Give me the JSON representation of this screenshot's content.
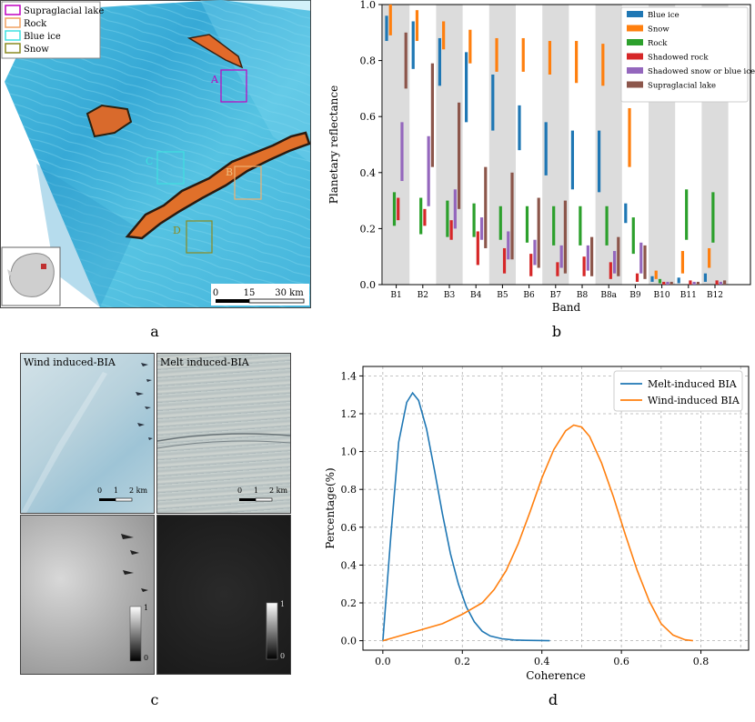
{
  "panels": {
    "a": "a",
    "b": "b",
    "c": "c",
    "d": "d"
  },
  "map_a": {
    "legend": [
      {
        "label": "Supraglacial lake",
        "color": "#c000c0"
      },
      {
        "label": "Rock",
        "color": "#f0a060"
      },
      {
        "label": "Blue ice",
        "color": "#40e0e0"
      },
      {
        "label": "Snow",
        "color": "#8a8a20"
      }
    ],
    "regions": [
      "A",
      "B",
      "C",
      "D"
    ],
    "scale": {
      "ticks": [
        "0",
        "15",
        "30 km"
      ]
    }
  },
  "images_c": {
    "titles": [
      "Wind induced-BIA",
      "Melt induced-BIA"
    ],
    "scale_ticks": [
      "0",
      "1",
      "2 km"
    ],
    "colorbar_ticks": [
      "1",
      "0"
    ]
  },
  "chart_data": [
    {
      "type": "bar",
      "ylabel": "Planetary reflectance",
      "xlabel": "Band",
      "ylim": [
        0,
        1.0
      ],
      "yticks": [
        "0.0",
        "0.2",
        "0.4",
        "0.6",
        "0.8",
        "1.0"
      ],
      "categories": [
        "B1",
        "B2",
        "B3",
        "B4",
        "B5",
        "B6",
        "B7",
        "B8",
        "B8a",
        "B9",
        "B10",
        "B11",
        "B12"
      ],
      "legend_position": "top-right",
      "series": [
        {
          "name": "Blue ice",
          "color": "#1f77b4",
          "ranges": [
            [
              0.87,
              0.96
            ],
            [
              0.77,
              0.94
            ],
            [
              0.71,
              0.88
            ],
            [
              0.58,
              0.83
            ],
            [
              0.55,
              0.75
            ],
            [
              0.48,
              0.64
            ],
            [
              0.39,
              0.58
            ],
            [
              0.34,
              0.55
            ],
            [
              0.33,
              0.55
            ],
            [
              0.22,
              0.29
            ],
            [
              0.01,
              0.03
            ],
            [
              0.005,
              0.025
            ],
            [
              0.01,
              0.04
            ]
          ]
        },
        {
          "name": "Snow",
          "color": "#ff7f0e",
          "ranges": [
            [
              0.89,
              1.0
            ],
            [
              0.87,
              0.98
            ],
            [
              0.84,
              0.94
            ],
            [
              0.79,
              0.91
            ],
            [
              0.76,
              0.88
            ],
            [
              0.76,
              0.88
            ],
            [
              0.75,
              0.87
            ],
            [
              0.72,
              0.87
            ],
            [
              0.71,
              0.86
            ],
            [
              0.42,
              0.63
            ],
            [
              0.02,
              0.05
            ],
            [
              0.04,
              0.12
            ],
            [
              0.06,
              0.13
            ]
          ]
        },
        {
          "name": "Rock",
          "color": "#2ca02c",
          "ranges": [
            [
              0.21,
              0.33
            ],
            [
              0.18,
              0.31
            ],
            [
              0.17,
              0.3
            ],
            [
              0.17,
              0.29
            ],
            [
              0.16,
              0.28
            ],
            [
              0.15,
              0.28
            ],
            [
              0.14,
              0.28
            ],
            [
              0.14,
              0.28
            ],
            [
              0.14,
              0.28
            ],
            [
              0.11,
              0.24
            ],
            [
              0.005,
              0.02
            ],
            [
              0.16,
              0.34
            ],
            [
              0.15,
              0.33
            ]
          ]
        },
        {
          "name": "Shadowed rock",
          "color": "#d62728",
          "ranges": [
            [
              0.23,
              0.31
            ],
            [
              0.21,
              0.27
            ],
            [
              0.16,
              0.23
            ],
            [
              0.07,
              0.19
            ],
            [
              0.04,
              0.13
            ],
            [
              0.03,
              0.11
            ],
            [
              0.03,
              0.08
            ],
            [
              0.03,
              0.1
            ],
            [
              0.02,
              0.08
            ],
            [
              0.01,
              0.04
            ],
            [
              0.0,
              0.01
            ],
            [
              0.0,
              0.015
            ],
            [
              0.0,
              0.015
            ]
          ]
        },
        {
          "name": "Shadowed snow or blue ice",
          "color": "#9467bd",
          "ranges": [
            [
              0.37,
              0.58
            ],
            [
              0.28,
              0.53
            ],
            [
              0.2,
              0.34
            ],
            [
              0.16,
              0.24
            ],
            [
              0.09,
              0.19
            ],
            [
              0.07,
              0.16
            ],
            [
              0.06,
              0.14
            ],
            [
              0.05,
              0.14
            ],
            [
              0.04,
              0.12
            ],
            [
              0.04,
              0.15
            ],
            [
              0.0,
              0.01
            ],
            [
              0.0,
              0.01
            ],
            [
              0.0,
              0.01
            ]
          ]
        },
        {
          "name": "Supraglacial lake",
          "color": "#8c564b",
          "ranges": [
            [
              0.7,
              0.9
            ],
            [
              0.42,
              0.79
            ],
            [
              0.27,
              0.65
            ],
            [
              0.13,
              0.42
            ],
            [
              0.09,
              0.4
            ],
            [
              0.06,
              0.31
            ],
            [
              0.04,
              0.3
            ],
            [
              0.03,
              0.17
            ],
            [
              0.03,
              0.17
            ],
            [
              0.02,
              0.14
            ],
            [
              0.0,
              0.01
            ],
            [
              0.0,
              0.01
            ],
            [
              0.0,
              0.015
            ]
          ]
        }
      ]
    },
    {
      "type": "line",
      "xlabel": "Coherence",
      "ylabel": "Percentage(%)",
      "xlim": [
        -0.05,
        0.92
      ],
      "ylim": [
        -0.05,
        1.45
      ],
      "xticks": [
        "0.0",
        "0.2",
        "0.4",
        "0.6",
        "0.8"
      ],
      "yticks": [
        "0.0",
        "0.2",
        "0.4",
        "0.6",
        "0.8",
        "1.0",
        "1.2",
        "1.4"
      ],
      "grid": true,
      "legend_position": "top-right",
      "series": [
        {
          "name": "Melt-induced BIA",
          "color": "#1f77b4",
          "x": [
            0.0,
            0.02,
            0.04,
            0.06,
            0.075,
            0.09,
            0.11,
            0.13,
            0.15,
            0.17,
            0.19,
            0.21,
            0.23,
            0.25,
            0.27,
            0.3,
            0.33,
            0.36,
            0.4,
            0.42
          ],
          "y": [
            0.0,
            0.55,
            1.05,
            1.26,
            1.31,
            1.27,
            1.12,
            0.9,
            0.67,
            0.46,
            0.3,
            0.18,
            0.1,
            0.05,
            0.025,
            0.01,
            0.004,
            0.002,
            0.001,
            0.0
          ]
        },
        {
          "name": "Wind-induced BIA",
          "color": "#ff7f0e",
          "x": [
            0.0,
            0.05,
            0.1,
            0.15,
            0.2,
            0.25,
            0.28,
            0.31,
            0.34,
            0.37,
            0.4,
            0.43,
            0.46,
            0.48,
            0.5,
            0.52,
            0.55,
            0.58,
            0.61,
            0.64,
            0.67,
            0.7,
            0.73,
            0.76,
            0.78
          ],
          "y": [
            0.0,
            0.03,
            0.06,
            0.09,
            0.14,
            0.2,
            0.27,
            0.37,
            0.51,
            0.68,
            0.86,
            1.01,
            1.11,
            1.14,
            1.13,
            1.08,
            0.94,
            0.76,
            0.56,
            0.37,
            0.21,
            0.09,
            0.03,
            0.005,
            0.0
          ]
        }
      ]
    }
  ]
}
